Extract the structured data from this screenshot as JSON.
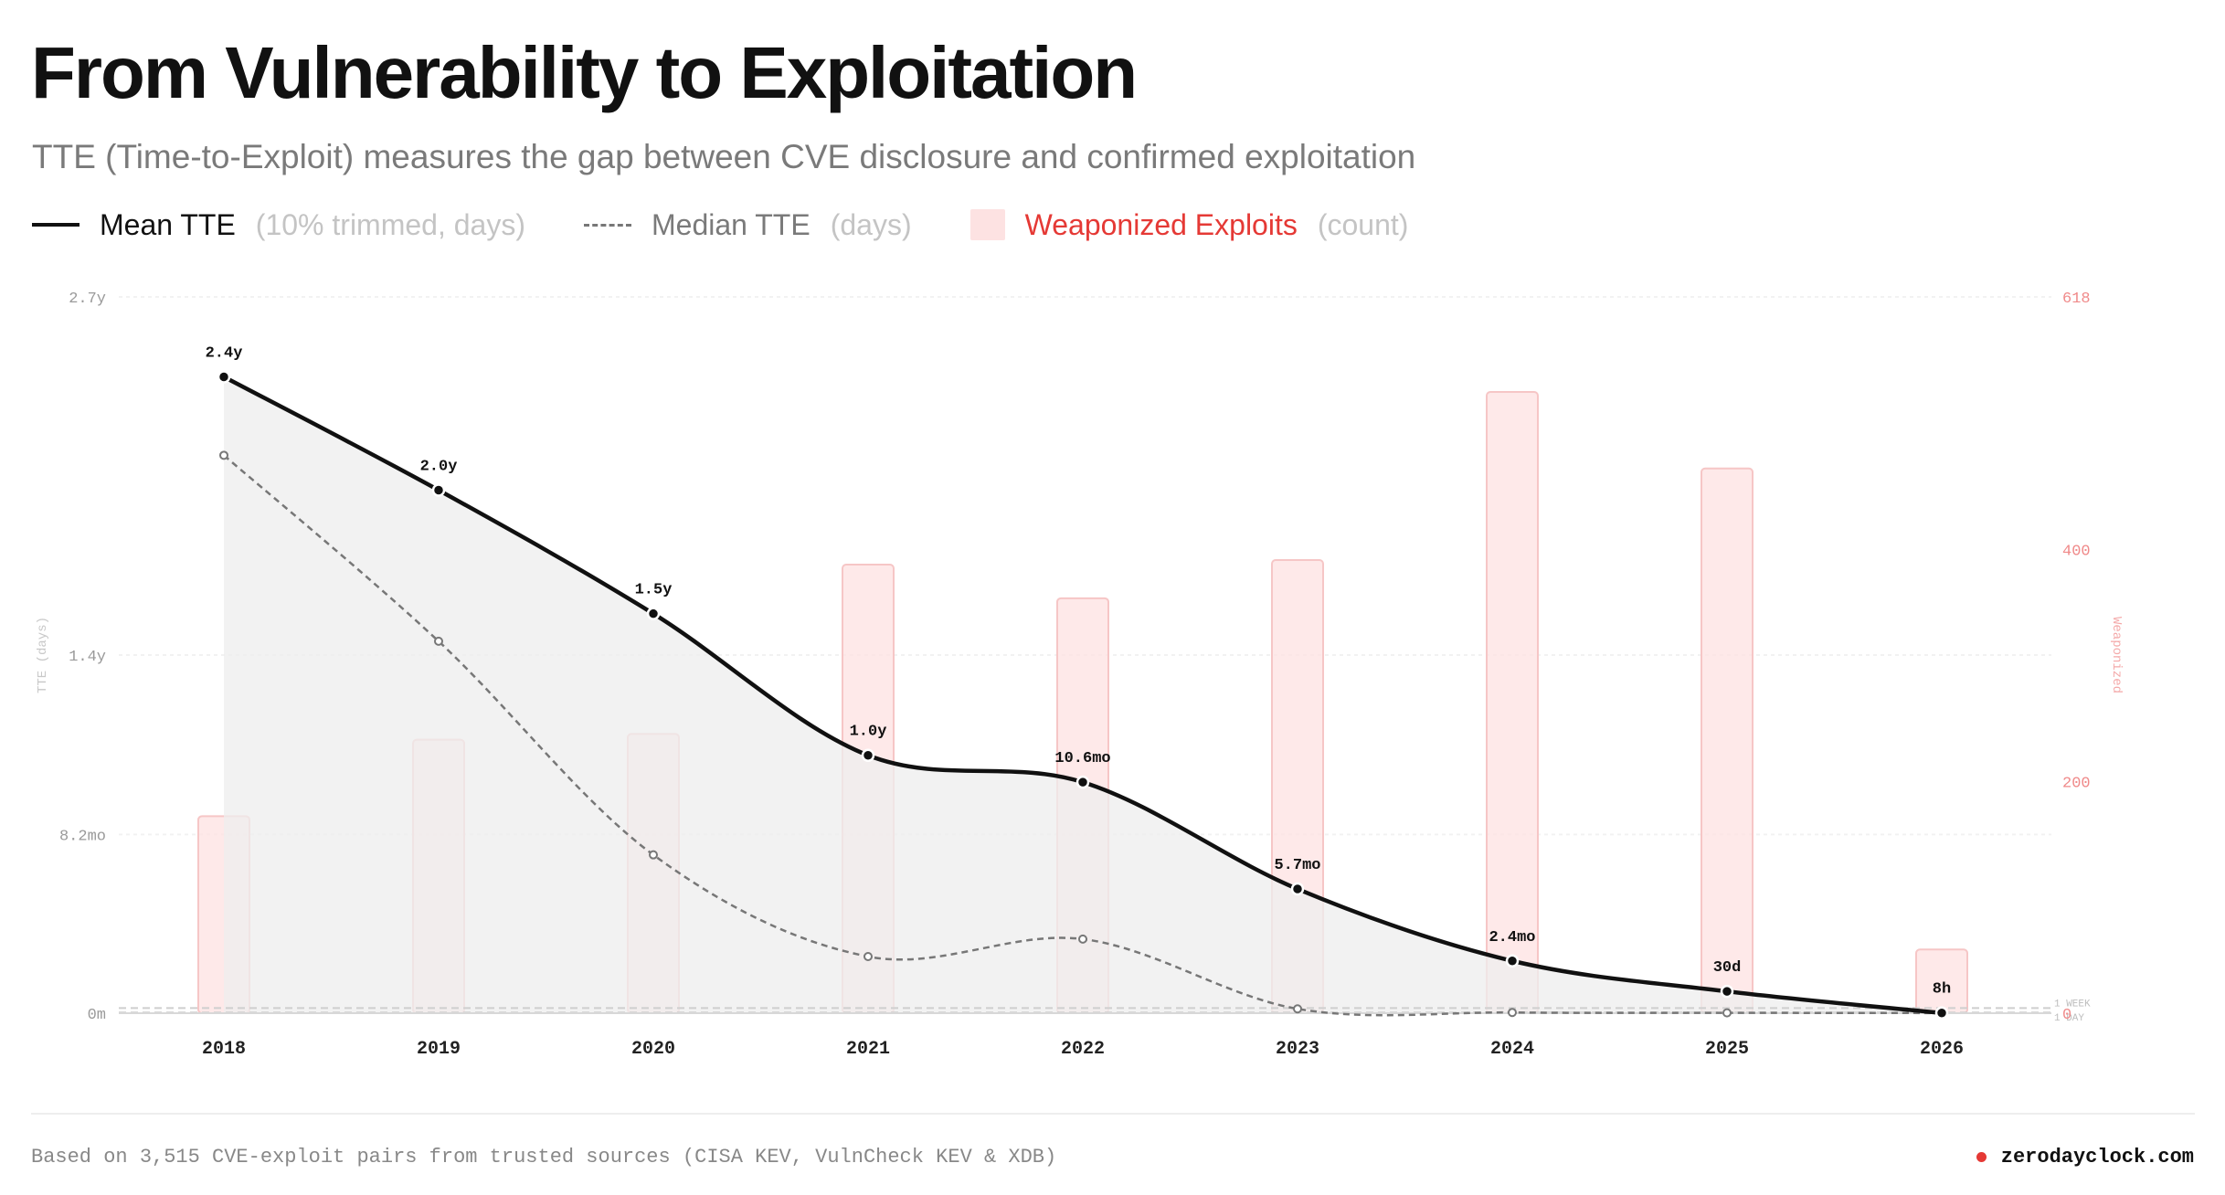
{
  "header": {
    "title": "From Vulnerability to Exploitation",
    "subtitle": "TTE (Time-to-Exploit) measures the gap between CVE disclosure and confirmed exploitation"
  },
  "legend": {
    "mean_label": "Mean TTE",
    "mean_note": "(10% trimmed, days)",
    "median_label": "Median TTE",
    "median_note": "(days)",
    "exploits_label": "Weaponized Exploits",
    "exploits_note": "(count)"
  },
  "colors": {
    "mean_line": "#111111",
    "median_line": "#777777",
    "bar_fill": "#fde2e2",
    "bar_stroke": "#f6c6c6",
    "area_fill": "#eeeeee",
    "exploit_accent": "#e53935",
    "left_axis_text": "#9a9a9a",
    "right_axis_text": "#f08a8a"
  },
  "chart_data": {
    "type": "line",
    "categories": [
      "2018",
      "2019",
      "2020",
      "2021",
      "2022",
      "2023",
      "2024",
      "2025",
      "2026"
    ],
    "series": [
      {
        "name": "Mean TTE",
        "axis": "left",
        "values_days": [
          876,
          720,
          550,
          355,
          318,
          171,
          72,
          30,
          0.33
        ],
        "labels": [
          "2.4y",
          "2.0y",
          "1.5y",
          "1.0y",
          "10.6mo",
          "5.7mo",
          "2.4mo",
          "30d",
          "8h"
        ]
      },
      {
        "name": "Median TTE",
        "axis": "left",
        "values_days": [
          768,
          512,
          218,
          78,
          102,
          6,
          1,
          0.5,
          0.2
        ]
      },
      {
        "name": "Weaponized Exploits",
        "type": "bar",
        "axis": "right",
        "values": [
          170,
          236,
          241,
          387,
          358,
          391,
          536,
          470,
          55
        ]
      }
    ],
    "y_left": {
      "label": "TTE (days)",
      "range_days": [
        0,
        986
      ],
      "ticks": [
        {
          "value": 0,
          "label": "0m"
        },
        {
          "value": 246,
          "label": "8.2mo"
        },
        {
          "value": 493,
          "label": "1.4y"
        },
        {
          "value": 986,
          "label": "2.7y"
        }
      ],
      "reference_lines": [
        {
          "value": 7,
          "label": "1 WEEK"
        },
        {
          "value": 1,
          "label": "1 DAY"
        }
      ]
    },
    "y_right": {
      "label": "Weaponized",
      "range": [
        0,
        618
      ],
      "ticks": [
        {
          "value": 0,
          "label": "0"
        },
        {
          "value": 200,
          "label": "200"
        },
        {
          "value": 400,
          "label": "400"
        },
        {
          "value": 618,
          "label": "618"
        }
      ]
    }
  },
  "footer": {
    "note": "Based on 3,515 CVE-exploit pairs from trusted sources (CISA KEV, VulnCheck KEV & XDB)",
    "brand": "zerodayclock.com"
  }
}
